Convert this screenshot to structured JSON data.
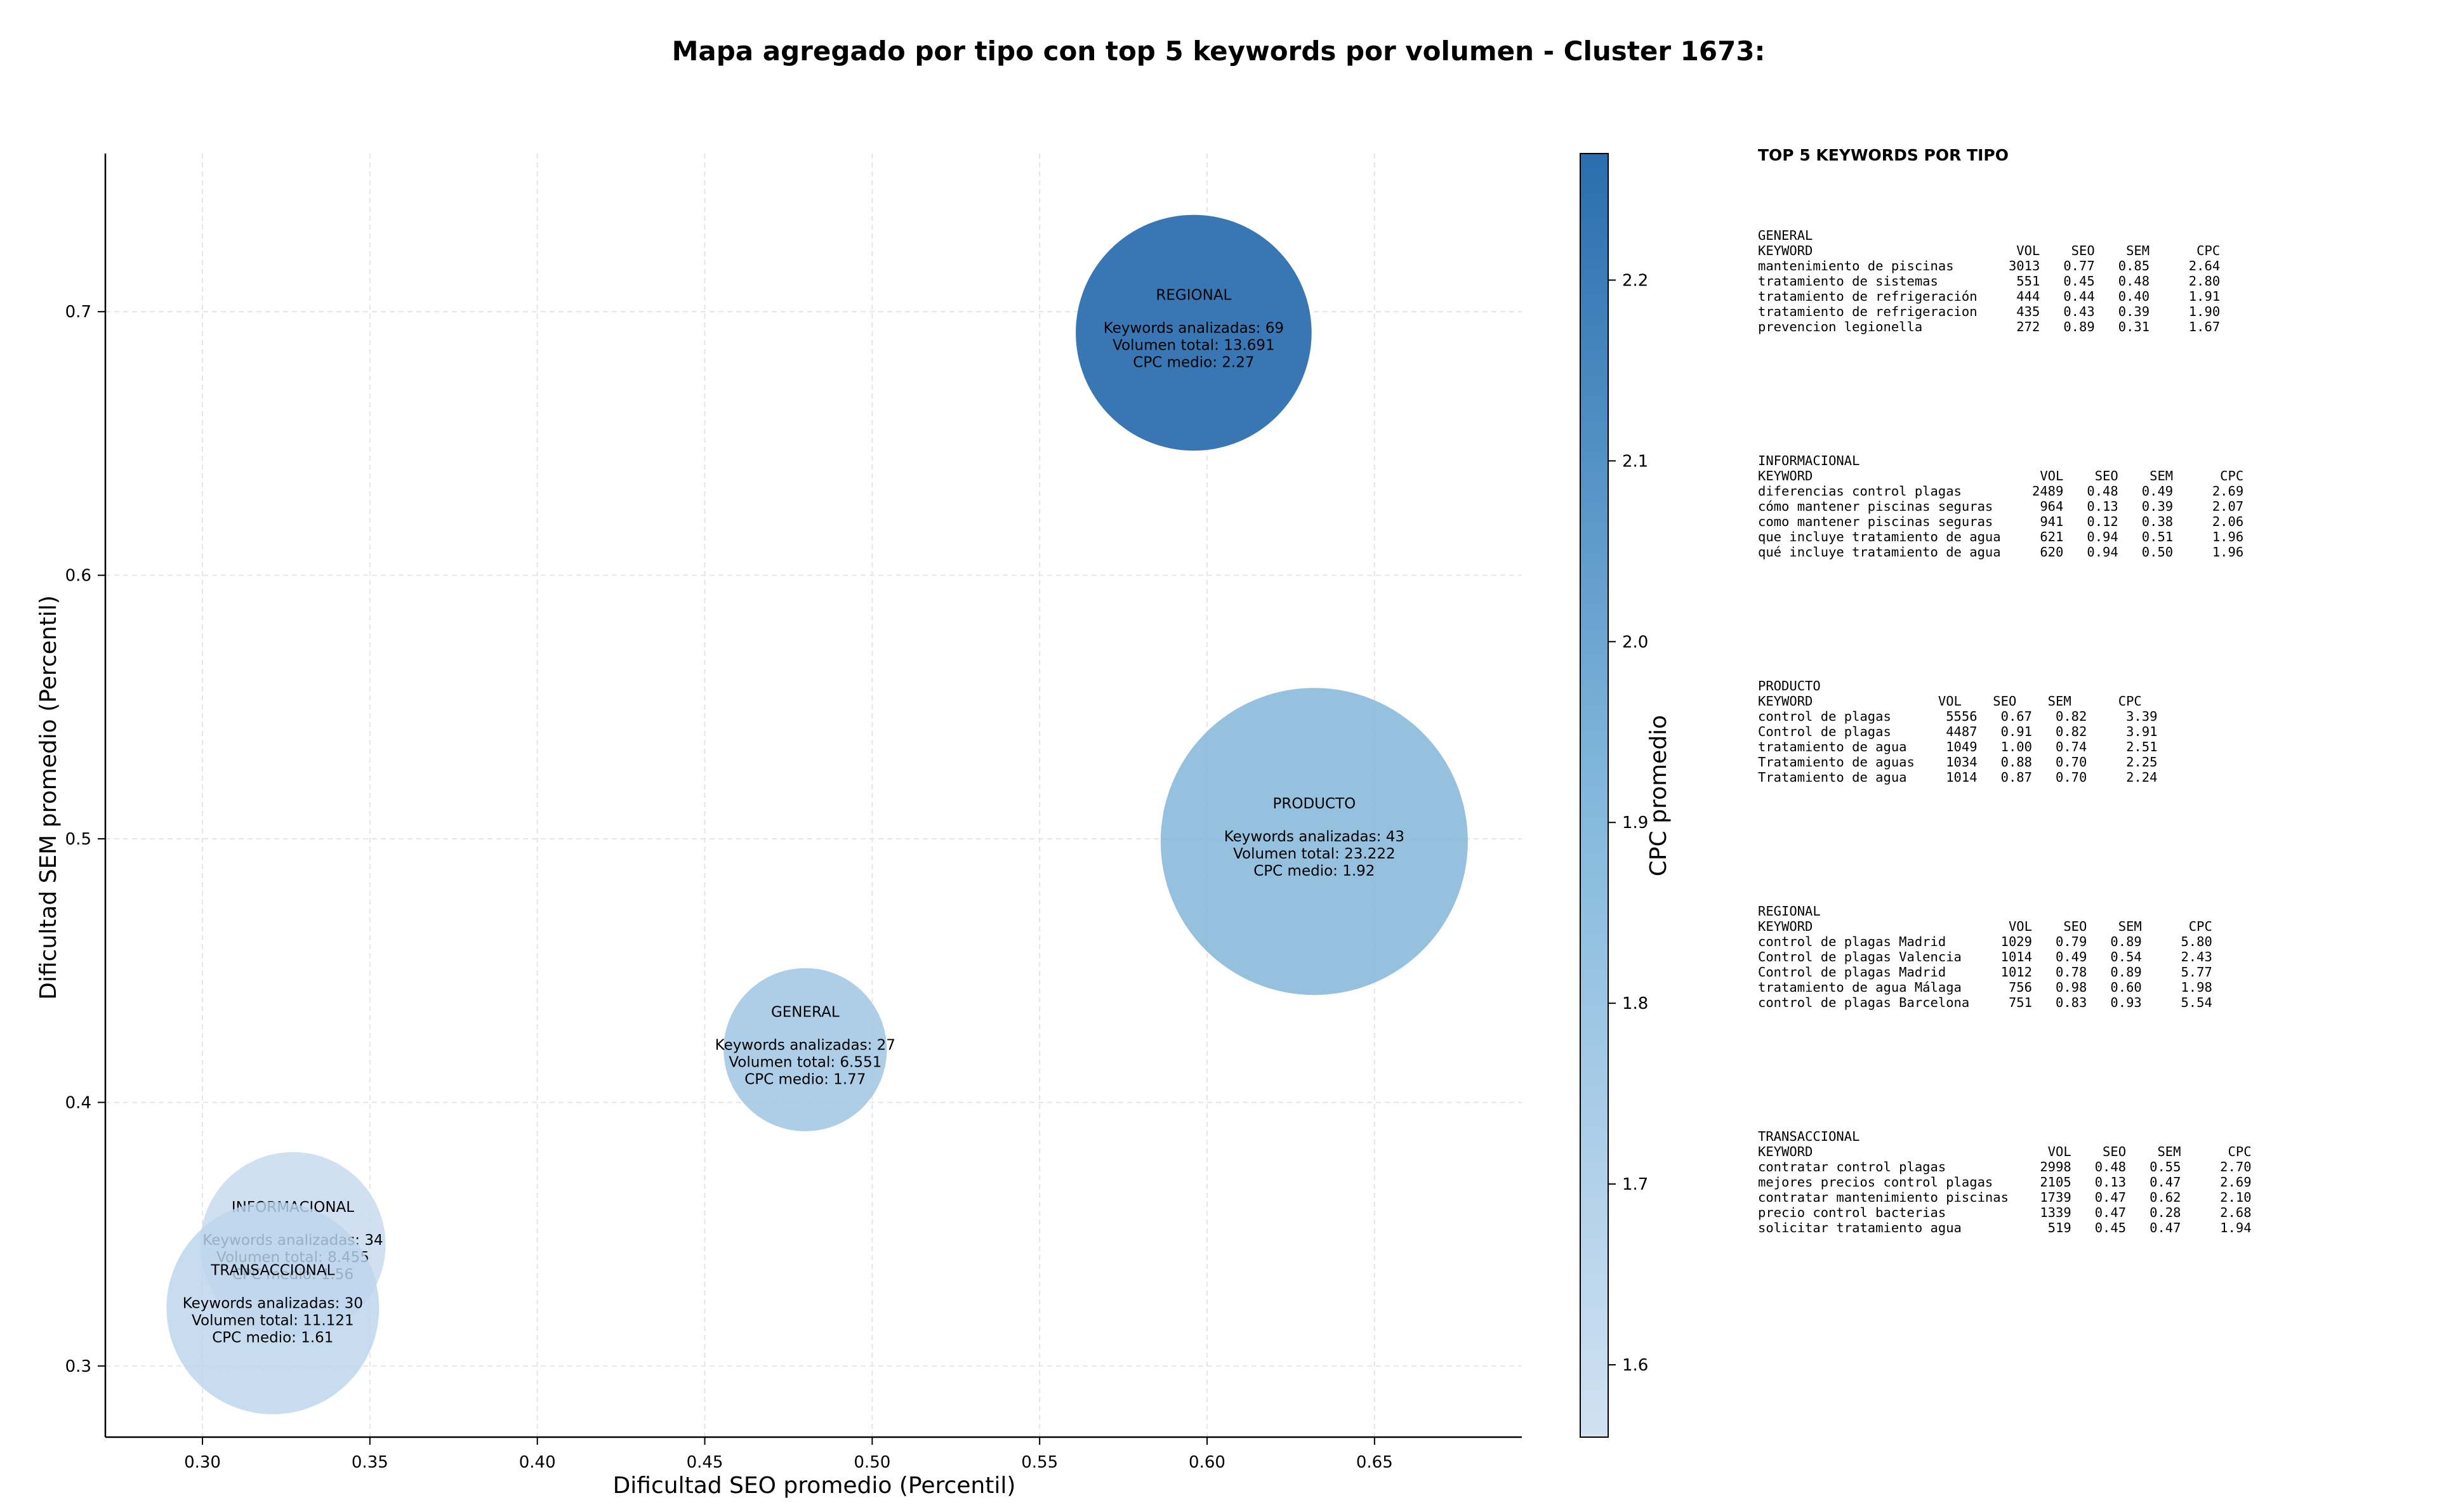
{
  "chart_data": {
    "type": "scatter",
    "title": "Mapa agregado por tipo con top 5 keywords por volumen - Cluster 1673:",
    "xlabel": "Dificultad SEO promedio (Percentil)",
    "ylabel": "Dificultad SEM promedio (Percentil)",
    "colorbar_label": "CPC promedio",
    "xlim": [
      0.271,
      0.694
    ],
    "ylim": [
      0.273,
      0.76
    ],
    "xticks": [
      "0.30",
      "0.35",
      "0.40",
      "0.45",
      "0.50",
      "0.55",
      "0.60",
      "0.65"
    ],
    "yticks": [
      "0.3",
      "0.4",
      "0.5",
      "0.6",
      "0.7"
    ],
    "colorbar_range": [
      1.56,
      2.27
    ],
    "colorbar_ticks": [
      "1.6",
      "1.7",
      "1.8",
      "1.9",
      "2.0",
      "2.1",
      "2.2"
    ],
    "grid": true,
    "colors": {
      "low": "#c6d9ee",
      "mid": "#7fb4d9",
      "high": "#2d70b0"
    },
    "points": [
      {
        "name": "REGIONAL",
        "x": 0.596,
        "y": 0.692,
        "cpc": 2.27,
        "volume": 13691,
        "analyzed_label": "Keywords analizadas: 69",
        "volume_label": "Volumen total: 13.691",
        "cpc_label": "CPC medio: 2.27"
      },
      {
        "name": "PRODUCTO",
        "x": 0.632,
        "y": 0.499,
        "cpc": 1.92,
        "volume": 23222,
        "analyzed_label": "Keywords analizadas: 43",
        "volume_label": "Volumen total: 23.222",
        "cpc_label": "CPC medio: 1.92"
      },
      {
        "name": "GENERAL",
        "x": 0.48,
        "y": 0.42,
        "cpc": 1.77,
        "volume": 6551,
        "analyzed_label": "Keywords analizadas: 27",
        "volume_label": "Volumen total: 6.551",
        "cpc_label": "CPC medio: 1.77"
      },
      {
        "name": "INFORMACIONAL",
        "x": 0.327,
        "y": 0.346,
        "cpc": 1.56,
        "volume": 8455,
        "analyzed_label": "Keywords analizadas: 34",
        "volume_label": "Volumen total: 8.455",
        "cpc_label": "CPC medio: 1.56"
      },
      {
        "name": "TRANSACCIONAL",
        "x": 0.321,
        "y": 0.322,
        "cpc": 1.61,
        "volume": 11121,
        "analyzed_label": "Keywords analizadas: 30",
        "volume_label": "Volumen total: 11.121",
        "cpc_label": "CPC medio: 1.61"
      }
    ]
  },
  "keywords_panel": {
    "heading": "TOP 5 KEYWORDS POR TIPO",
    "blocks": [
      "GENERAL\nKEYWORD                          VOL    SEO    SEM      CPC\nmantenimiento de piscinas       3013   0.77   0.85     2.64\ntratamiento de sistemas          551   0.45   0.48     2.80\ntratamiento de refrigeración     444   0.44   0.40     1.91\ntratamiento de refrigeracion     435   0.43   0.39     1.90\nprevencion legionella            272   0.89   0.31     1.67",
      "INFORMACIONAL\nKEYWORD                             VOL    SEO    SEM      CPC\ndiferencias control plagas         2489   0.48   0.49     2.69\ncómo mantener piscinas seguras      964   0.13   0.39     2.07\ncomo mantener piscinas seguras      941   0.12   0.38     2.06\nque incluye tratamiento de agua     621   0.94   0.51     1.96\nqué incluye tratamiento de agua     620   0.94   0.50     1.96",
      "PRODUCTO\nKEYWORD                VOL    SEO    SEM      CPC\ncontrol de plagas       5556   0.67   0.82     3.39\nControl de plagas       4487   0.91   0.82     3.91\ntratamiento de agua     1049   1.00   0.74     2.51\nTratamiento de aguas    1034   0.88   0.70     2.25\nTratamiento de agua     1014   0.87   0.70     2.24",
      "REGIONAL\nKEYWORD                         VOL    SEO    SEM      CPC\ncontrol de plagas Madrid       1029   0.79   0.89     5.80\nControl de plagas Valencia     1014   0.49   0.54     2.43\nControl de plagas Madrid       1012   0.78   0.89     5.77\ntratamiento de agua Málaga      756   0.98   0.60     1.98\ncontrol de plagas Barcelona     751   0.83   0.93     5.54",
      "TRANSACCIONAL\nKEYWORD                              VOL    SEO    SEM      CPC\ncontratar control plagas            2998   0.48   0.55     2.70\nmejores precios control plagas      2105   0.13   0.47     2.69\ncontratar mantenimiento piscinas    1739   0.47   0.62     2.10\nprecio control bacterias            1339   0.47   0.28     2.68\nsolicitar tratamiento agua           519   0.45   0.47     1.94"
    ]
  }
}
